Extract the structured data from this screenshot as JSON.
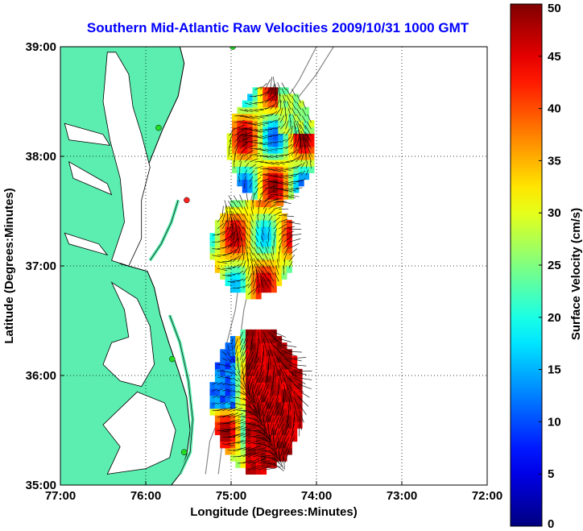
{
  "chart_data": {
    "type": "heatmap",
    "title": "Southern Mid-Atlantic Raw Velocities 2009/10/31 1000 GMT",
    "xlabel": "Longitude (Degrees:Minutes)",
    "ylabel": "Latitude (Degrees:Minutes)",
    "x_ticks": [
      {
        "value": -77,
        "label": "77:00"
      },
      {
        "value": -76,
        "label": "76:00"
      },
      {
        "value": -75,
        "label": "75:00"
      },
      {
        "value": -74,
        "label": "74:00"
      },
      {
        "value": -73,
        "label": "73:00"
      },
      {
        "value": -72,
        "label": "72:00"
      }
    ],
    "y_ticks": [
      {
        "value": 35,
        "label": "35:00"
      },
      {
        "value": 36,
        "label": "36:00"
      },
      {
        "value": 37,
        "label": "37:00"
      },
      {
        "value": 38,
        "label": "38:00"
      },
      {
        "value": 39,
        "label": "39:00"
      }
    ],
    "xlim": [
      -77,
      -72
    ],
    "ylim": [
      35,
      39
    ],
    "grid": true,
    "colorbar": {
      "label": "Surface Velocity (cm/s)",
      "range": [
        0,
        50
      ],
      "ticks": [
        {
          "value": 0,
          "label": "0"
        },
        {
          "value": 5,
          "label": "5"
        },
        {
          "value": 10,
          "label": "10"
        },
        {
          "value": 15,
          "label": "15"
        },
        {
          "value": 20,
          "label": "20"
        },
        {
          "value": 25,
          "label": "25"
        },
        {
          "value": 30,
          "label": "30"
        },
        {
          "value": 35,
          "label": "35"
        },
        {
          "value": 40,
          "label": "40"
        },
        {
          "value": 45,
          "label": "45"
        },
        {
          "value": 50,
          "label": "50"
        }
      ],
      "colormap": "jet"
    },
    "regions": [
      {
        "name": "northern-field",
        "lon_range": [
          -75.05,
          -74.05
        ],
        "lat_range": [
          37.55,
          38.6
        ],
        "speed_range": [
          10,
          50
        ]
      },
      {
        "name": "central-field",
        "lon_range": [
          -75.25,
          -74.3
        ],
        "lat_range": [
          36.7,
          37.6
        ],
        "speed_range": [
          15,
          48
        ]
      },
      {
        "name": "southern-field",
        "lon_range": [
          -75.25,
          -74.2
        ],
        "lat_range": [
          35.1,
          36.4
        ],
        "speed_range": [
          8,
          50
        ]
      }
    ],
    "stations": [
      {
        "lon": -74.98,
        "lat": 39.0,
        "color": "#22dd22"
      },
      {
        "lon": -75.85,
        "lat": 38.26,
        "color": "#22dd22"
      },
      {
        "lon": -75.52,
        "lat": 37.6,
        "color": "#ff2222"
      },
      {
        "lon": -75.69,
        "lat": 36.15,
        "color": "#22dd22"
      },
      {
        "lon": -75.55,
        "lat": 35.3,
        "color": "#22dd22"
      }
    ],
    "colors": {
      "land": "#5ceeb0",
      "coastline": "#000000",
      "bathymetry": "#888888",
      "title": "#0000ff"
    }
  }
}
